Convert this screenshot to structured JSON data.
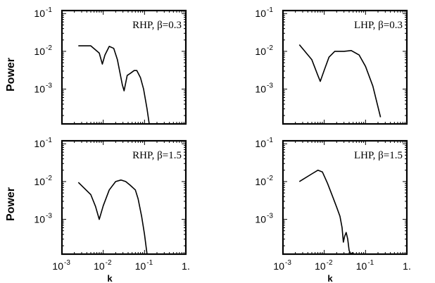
{
  "figure": {
    "ylabel": "Power",
    "xlabel": "k"
  },
  "chart_data": [
    {
      "type": "line",
      "title": "RHP, β=0.3",
      "ylabel": "Power",
      "xlabel": "",
      "xscale": "log",
      "yscale": "log",
      "xlim": [
        0.001,
        1
      ],
      "ylim": [
        0.00012,
        0.12
      ],
      "yticks": [
        {
          "v": 0.1,
          "label": "10"
        },
        {
          "v": 0.01,
          "label": "10"
        },
        {
          "v": 0.001,
          "label": "10"
        }
      ],
      "ytick_exps": [
        "-1",
        "-2",
        "-3"
      ],
      "xticks": [],
      "xtick_exps": [],
      "x": [
        0.0025,
        0.005,
        0.008,
        0.0095,
        0.011,
        0.014,
        0.018,
        0.022,
        0.029,
        0.032,
        0.038,
        0.045,
        0.056,
        0.065,
        0.08,
        0.095,
        0.115,
        0.13
      ],
      "y": [
        0.014,
        0.014,
        0.009,
        0.0046,
        0.008,
        0.0135,
        0.012,
        0.006,
        0.0013,
        0.0009,
        0.0023,
        0.0026,
        0.0031,
        0.0031,
        0.002,
        0.001,
        0.0003,
        0.00012
      ]
    },
    {
      "type": "line",
      "title": "LHP, β=0.3",
      "ylabel": "",
      "xlabel": "",
      "xscale": "log",
      "yscale": "log",
      "xlim": [
        0.001,
        1
      ],
      "ylim": [
        0.00012,
        0.12
      ],
      "yticks": [
        {
          "v": 0.1,
          "label": "10"
        },
        {
          "v": 0.01,
          "label": "10"
        },
        {
          "v": 0.001,
          "label": "10"
        }
      ],
      "ytick_exps": [
        "-1",
        "-2",
        "-3"
      ],
      "xticks": [],
      "xtick_exps": [],
      "x": [
        0.0025,
        0.005,
        0.007,
        0.008,
        0.01,
        0.013,
        0.018,
        0.03,
        0.045,
        0.07,
        0.1,
        0.15,
        0.23
      ],
      "y": [
        0.015,
        0.006,
        0.0023,
        0.0016,
        0.0032,
        0.007,
        0.01,
        0.01,
        0.0105,
        0.008,
        0.004,
        0.0012,
        0.00018
      ]
    },
    {
      "type": "line",
      "title": "RHP, β=1.5",
      "ylabel": "Power",
      "xlabel": "k",
      "xscale": "log",
      "yscale": "log",
      "xlim": [
        0.001,
        1
      ],
      "ylim": [
        0.00012,
        0.12
      ],
      "yticks": [
        {
          "v": 0.1,
          "label": "10"
        },
        {
          "v": 0.01,
          "label": "10"
        },
        {
          "v": 0.001,
          "label": "10"
        }
      ],
      "ytick_exps": [
        "-1",
        "-2",
        "-3"
      ],
      "xticks": [
        {
          "v": 0.001,
          "label": "10"
        },
        {
          "v": 0.01,
          "label": "10"
        },
        {
          "v": 0.1,
          "label": "10"
        },
        {
          "v": 1,
          "label": "1."
        }
      ],
      "xtick_exps": [
        "-3",
        "-2",
        "-1",
        ""
      ],
      "x": [
        0.0025,
        0.005,
        0.0065,
        0.008,
        0.01,
        0.014,
        0.02,
        0.027,
        0.035,
        0.045,
        0.06,
        0.07,
        0.085,
        0.1,
        0.115
      ],
      "y": [
        0.0095,
        0.0045,
        0.0022,
        0.001,
        0.0023,
        0.006,
        0.01,
        0.011,
        0.01,
        0.008,
        0.006,
        0.0035,
        0.0012,
        0.0004,
        0.00012
      ]
    },
    {
      "type": "line",
      "title": "LHP, β=1.5",
      "ylabel": "",
      "xlabel": "k",
      "xscale": "log",
      "yscale": "log",
      "xlim": [
        0.001,
        1
      ],
      "ylim": [
        0.00012,
        0.12
      ],
      "yticks": [
        {
          "v": 0.1,
          "label": "10"
        },
        {
          "v": 0.01,
          "label": "10"
        },
        {
          "v": 0.001,
          "label": "10"
        }
      ],
      "ytick_exps": [
        "-1",
        "-2",
        "-3"
      ],
      "xticks": [
        {
          "v": 0.001,
          "label": "10"
        },
        {
          "v": 0.01,
          "label": "10"
        },
        {
          "v": 0.1,
          "label": "10"
        },
        {
          "v": 1,
          "label": "1."
        }
      ],
      "xtick_exps": [
        "-3",
        "-2",
        "-1",
        ""
      ],
      "x": [
        0.0025,
        0.005,
        0.007,
        0.009,
        0.012,
        0.016,
        0.02,
        0.024,
        0.027,
        0.029,
        0.031,
        0.034,
        0.037,
        0.04,
        0.044,
        0.048,
        0.053,
        0.06
      ],
      "y": [
        0.01,
        0.016,
        0.02,
        0.018,
        0.009,
        0.004,
        0.0021,
        0.0012,
        0.0006,
        0.00025,
        0.00035,
        0.00045,
        0.0003,
        0.00015,
        0.00012,
        0.00013,
        0.00012,
        0.00012
      ]
    }
  ]
}
